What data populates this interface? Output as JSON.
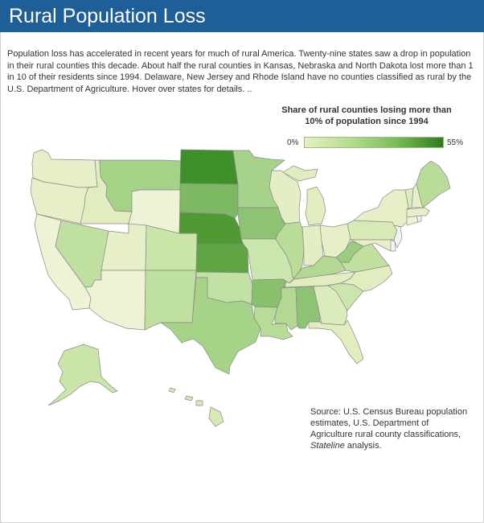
{
  "header": {
    "title": "Rural Population Loss"
  },
  "intro": "Population loss has accelerated in recent years for much of rural America. Twenty-nine states saw a drop in population in their rural counties this decade. About half the rural counties in Kansas, Nebraska and North Dakota lost more than 1 in 10 of their residents since 1994. Delaware, New Jersey and Rhode Island have no counties classified as rural by the U.S. Department of Agriculture. Hover over states for details. ..",
  "legend": {
    "title": "Share of rural counties losing more than 10% of population since 1994",
    "min_label": "0%",
    "max_label": "55%",
    "colors": [
      "#e6f0c4",
      "#b5dc8e",
      "#78bb59",
      "#2f7c1c"
    ]
  },
  "source": {
    "text": "Source: U.S. Census Bureau population estimates, U.S. Department of Agriculture rural county classifications,",
    "italic": "Stateline",
    "suffix": " analysis."
  },
  "map": {
    "no_rural_color": "#f4f4f0",
    "states": {
      "WA": "#e6efc7",
      "OR": "#e6efc7",
      "CA": "#eef3d6",
      "ID": "#e1ecbf",
      "NV": "#bfe0a0",
      "MT": "#a4d287",
      "WY": "#eef3d6",
      "UT": "#e6efc7",
      "AZ": "#eef3d6",
      "CO": "#c9e5a8",
      "NM": "#c0e0a0",
      "ND": "#3f8f2a",
      "SD": "#7db862",
      "NE": "#509a35",
      "KS": "#5ea443",
      "OK": "#c2e1a4",
      "TX": "#a7d389",
      "MN": "#a6d28a",
      "IA": "#8fc374",
      "MO": "#cbe6ad",
      "AR": "#88c06d",
      "LA": "#b8dc97",
      "WI": "#e3eec4",
      "IL": "#b9dc98",
      "MI": "#e1ecbf",
      "IN": "#e3eec4",
      "OH": "#e6efc7",
      "KY": "#b2d892",
      "TN": "#e1ecbf",
      "MS": "#b2d892",
      "AL": "#8fc374",
      "GA": "#dcebbc",
      "FL": "#e1ecbf",
      "SC": "#cbe6ad",
      "NC": "#e1ecbf",
      "VA": "#c0e0a0",
      "WV": "#9ccc80",
      "PA": "#d7e9b4",
      "NY": "#e6efc7",
      "ME": "#b9dc98",
      "VT": "#dcebbc",
      "NH": "#e6efc7",
      "MA": "#e6efc7",
      "CT": "#eef3d6",
      "RI": "#f4f4f0",
      "NJ": "#f4f4f0",
      "DE": "#f4f4f0",
      "MD": "#e6efc7",
      "AK": "#c9e5a8",
      "HI": "#d7e9b4"
    }
  }
}
